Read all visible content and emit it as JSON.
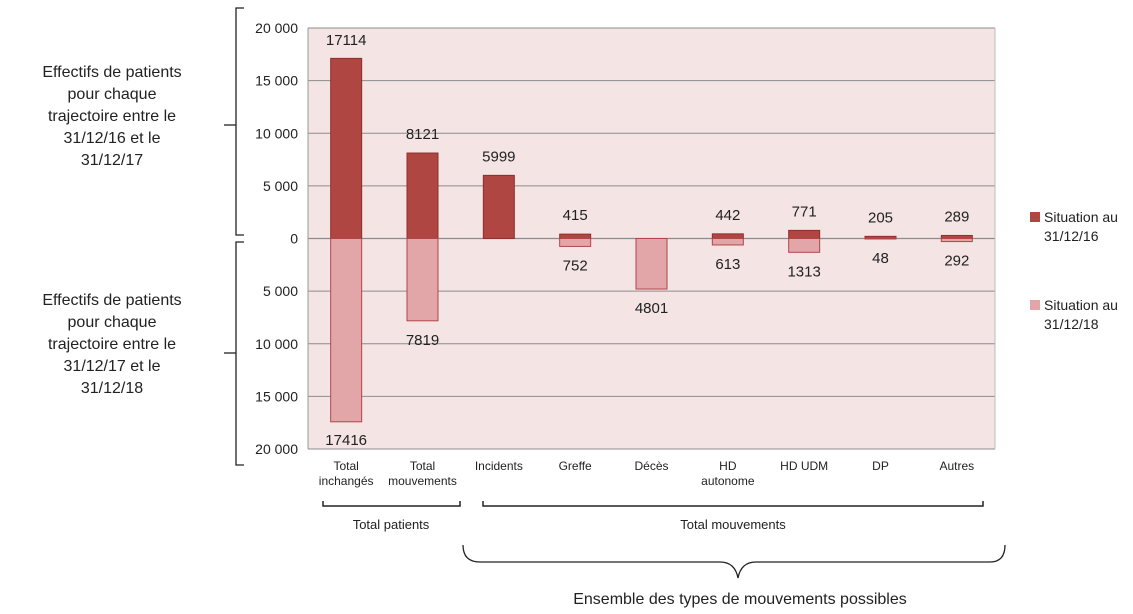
{
  "left_labels": {
    "top": "Effectifs de patients pour chaque trajectoire entre le 31/12/16 et le 31/12/17",
    "top_lines": [
      "Effectifs de patients",
      "pour chaque",
      "trajectoire entre le",
      "31/12/16 et le",
      "31/12/17"
    ],
    "bottom_lines": [
      "Effectifs de patients",
      "pour chaque",
      "trajectoire entre le",
      "31/12/17 et le",
      "31/12/18"
    ]
  },
  "legend": {
    "item1_lines": [
      "Situation au",
      "31/12/16"
    ],
    "item2_lines": [
      "Situation au",
      "31/12/18"
    ]
  },
  "groups": {
    "patients": "Total patients",
    "mouvements": "Total mouvements",
    "all": "Ensemble des types de mouvements possibles"
  },
  "colors": {
    "upper": "#b04642",
    "lower": "#e3a6a8",
    "plot_bg": "#f4e4e4",
    "grid": "#8c8c8c"
  },
  "chart_data": {
    "type": "bar",
    "categories": [
      [
        "Total",
        "inchangés"
      ],
      [
        "Total",
        "mouvements"
      ],
      [
        "Incidents"
      ],
      [
        "Greffe"
      ],
      [
        "Décès"
      ],
      [
        "HD",
        "autonome"
      ],
      [
        "HD UDM"
      ],
      [
        "DP"
      ],
      [
        "Autres"
      ]
    ],
    "series": [
      {
        "name": "Situation au 31/12/16",
        "values": [
          17114,
          8121,
          5999,
          415,
          0,
          442,
          771,
          205,
          289
        ]
      },
      {
        "name": "Situation au 31/12/18",
        "values": [
          17416,
          7819,
          0,
          752,
          4801,
          613,
          1313,
          48,
          292
        ]
      }
    ],
    "upper_labels": [
      "17114",
      "8121",
      "5999",
      "415",
      "",
      "442",
      "771",
      "205",
      "289"
    ],
    "lower_labels": [
      "17416",
      "7819",
      "",
      "752",
      "4801",
      "613",
      "1313",
      "48",
      "292"
    ],
    "y_ticks": [
      "20 000",
      "15 000",
      "10 000",
      "5 000",
      "0",
      "5 000",
      "10 000",
      "15 000",
      "20 000"
    ],
    "ylim": [
      -20000,
      20000
    ],
    "grid": true,
    "legend_position": "right"
  }
}
